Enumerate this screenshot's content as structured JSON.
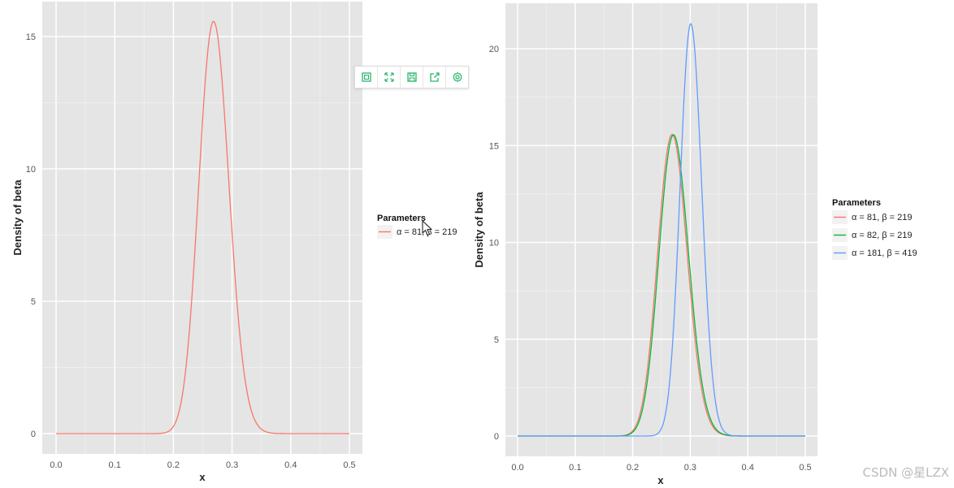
{
  "chart_data": [
    {
      "type": "line",
      "title": "",
      "xlabel": "x",
      "ylabel": "Density of beta",
      "xlim": [
        0.0,
        0.5
      ],
      "ylim": [
        -0.2,
        16.0
      ],
      "xticks": [
        "0.0",
        "0.1",
        "0.2",
        "0.3",
        "0.4",
        "0.5"
      ],
      "yticks": [
        "0",
        "5",
        "10",
        "15"
      ],
      "grid": true,
      "legend": {
        "title": "Parameters",
        "placement": "right",
        "entries": [
          "α = 81, β = 219"
        ]
      },
      "series": [
        {
          "name": "α = 81, β = 219",
          "distribution": "beta",
          "alpha": 81,
          "beta": 219,
          "color": "#F8766D"
        }
      ]
    },
    {
      "type": "line",
      "title": "",
      "xlabel": "x",
      "ylabel": "Density of beta",
      "xlim": [
        0.0,
        0.5
      ],
      "ylim": [
        -1.0,
        22.5
      ],
      "xticks": [
        "0.0",
        "0.1",
        "0.2",
        "0.3",
        "0.4",
        "0.5"
      ],
      "yticks": [
        "0",
        "5",
        "10",
        "15",
        "20"
      ],
      "grid": true,
      "legend": {
        "title": "Parameters",
        "placement": "right",
        "entries": [
          "α = 81, β = 219",
          "α = 82, β = 219",
          "α = 181, β = 419"
        ]
      },
      "series": [
        {
          "name": "α = 81, β = 219",
          "distribution": "beta",
          "alpha": 81,
          "beta": 219,
          "color": "#F8766D"
        },
        {
          "name": "α = 82, β = 219",
          "distribution": "beta",
          "alpha": 82,
          "beta": 219,
          "color": "#00BA38"
        },
        {
          "name": "α = 181, β = 419",
          "distribution": "beta",
          "alpha": 181,
          "beta": 419,
          "color": "#619CFF"
        }
      ]
    }
  ],
  "toolbar": {
    "items": [
      {
        "icon": "frame-icon"
      },
      {
        "icon": "expand-icon"
      },
      {
        "icon": "save-icon"
      },
      {
        "icon": "share-icon"
      },
      {
        "icon": "gear-icon"
      }
    ],
    "color": "#2bb56b"
  },
  "watermark": "CSDN @星LZX"
}
